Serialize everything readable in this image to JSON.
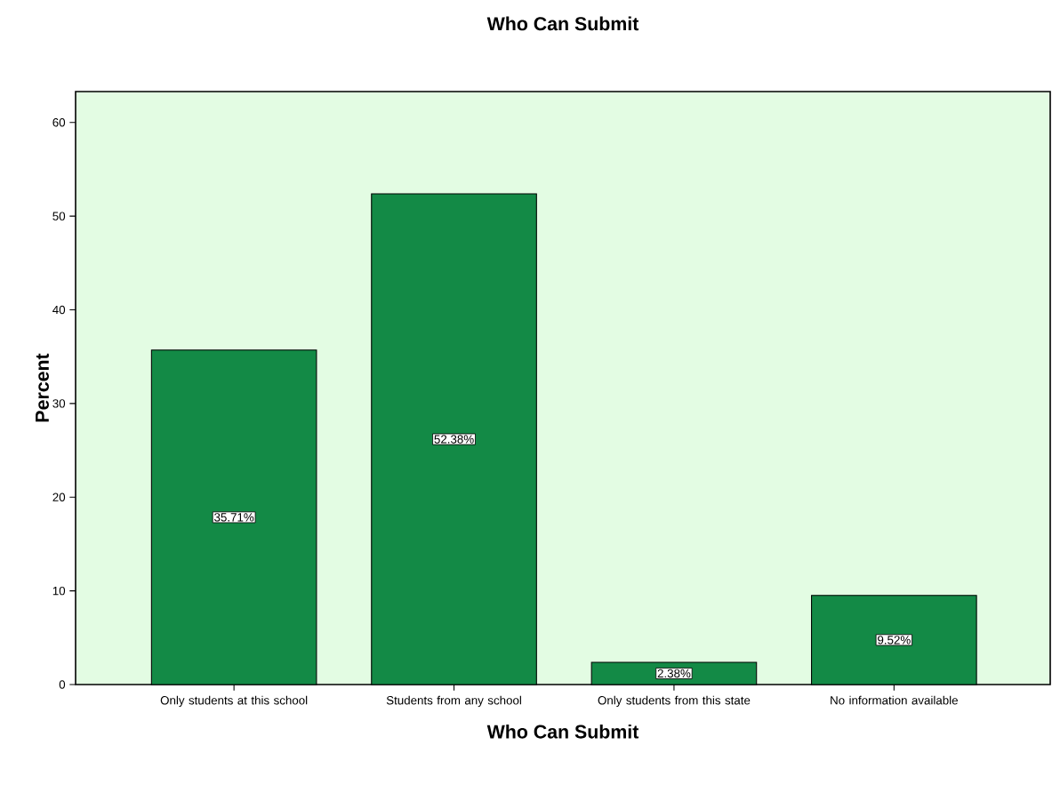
{
  "chart_data": {
    "type": "bar",
    "title": "Who Can Submit",
    "xlabel": "Who Can Submit",
    "ylabel": "Percent",
    "categories": [
      "Only students at this school",
      "Students from any school",
      "Only students from this state",
      "No information available"
    ],
    "values": [
      35.71,
      52.38,
      2.38,
      9.52
    ],
    "value_labels": [
      "35.71%",
      "52.38%",
      "2.38%",
      "9.52%"
    ],
    "color": "#138a46",
    "ylim": [
      0,
      63.3
    ],
    "yticks": [
      0,
      10,
      20,
      30,
      40,
      50,
      60
    ],
    "grid": false
  }
}
